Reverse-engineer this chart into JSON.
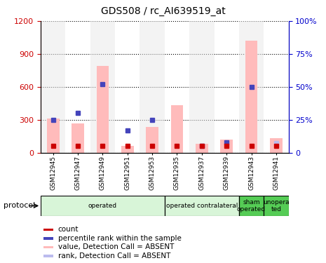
{
  "title": "GDS508 / rc_AI639519_at",
  "samples": [
    "GSM12945",
    "GSM12947",
    "GSM12949",
    "GSM12951",
    "GSM12953",
    "GSM12935",
    "GSM12937",
    "GSM12939",
    "GSM12943",
    "GSM12941"
  ],
  "pink_bars": [
    310,
    265,
    790,
    60,
    235,
    430,
    80,
    120,
    1020,
    130
  ],
  "blue_squares_pct": [
    25,
    30,
    52,
    17,
    25,
    0,
    5,
    8,
    50,
    0
  ],
  "red_squares_val": [
    5,
    5,
    5,
    5,
    5,
    5,
    5,
    5,
    5,
    5
  ],
  "light_blue_squares_pct": [
    0,
    0,
    0,
    0,
    0,
    0,
    0,
    0,
    0,
    7
  ],
  "ylim_left": [
    0,
    1200
  ],
  "ylim_right": [
    0,
    100
  ],
  "yticks_left": [
    0,
    300,
    600,
    900,
    1200
  ],
  "ytick_labels_left": [
    "0",
    "300",
    "600",
    "900",
    "1200"
  ],
  "yticks_right": [
    0,
    25,
    50,
    75,
    100
  ],
  "ytick_labels_right": [
    "0",
    "25%",
    "50%",
    "75%",
    "100%"
  ],
  "protocol_groups": [
    {
      "label": "operated",
      "start": 0,
      "end": 5,
      "color": "#d8f5d8"
    },
    {
      "label": "operated contralateral",
      "start": 5,
      "end": 8,
      "color": "#d8f5d8"
    },
    {
      "label": "sham\noperated",
      "start": 8,
      "end": 9,
      "color": "#55cc55"
    },
    {
      "label": "unopera\nted",
      "start": 9,
      "end": 10,
      "color": "#55cc55"
    }
  ],
  "left_color": "#cc0000",
  "right_color": "#0000cc",
  "pink_color": "#ffbbbb",
  "light_blue_color": "#bbbbee",
  "blue_square_color": "#4444bb",
  "red_square_color": "#cc0000",
  "bg_color": "#ffffff"
}
